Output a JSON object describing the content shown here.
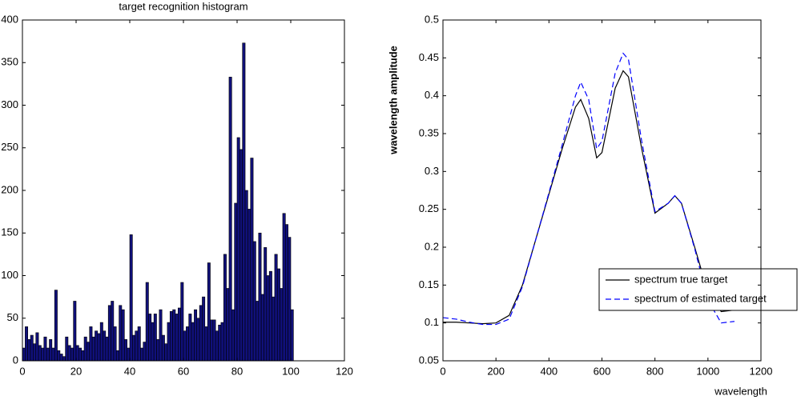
{
  "chart_data": [
    {
      "type": "histogram",
      "title": "target recognition histogram",
      "bins": [
        0,
        1,
        2,
        3,
        4,
        5,
        6,
        7,
        8,
        9,
        10,
        11,
        12,
        13,
        14,
        15,
        16,
        17,
        18,
        19,
        20,
        21,
        22,
        23,
        24,
        25,
        26,
        27,
        28,
        29,
        30,
        31,
        32,
        33,
        34,
        35,
        36,
        37,
        38,
        39,
        40,
        41,
        42,
        43,
        44,
        45,
        46,
        47,
        48,
        49,
        50,
        51,
        52,
        53,
        54,
        55,
        56,
        57,
        58,
        59,
        60,
        61,
        62,
        63,
        64,
        65,
        66,
        67,
        68,
        69,
        70,
        71,
        72,
        73,
        74,
        75,
        76,
        77,
        78,
        79,
        80,
        81,
        82,
        83,
        84,
        85,
        86,
        87,
        88,
        89,
        90,
        91,
        92,
        93,
        94,
        95,
        96,
        97,
        98,
        99,
        100,
        101
      ],
      "counts": [
        15,
        40,
        25,
        30,
        20,
        33,
        18,
        15,
        28,
        15,
        25,
        15,
        83,
        12,
        8,
        5,
        28,
        18,
        15,
        70,
        18,
        15,
        12,
        28,
        22,
        40,
        28,
        35,
        32,
        45,
        35,
        28,
        65,
        70,
        40,
        12,
        65,
        60,
        25,
        15,
        148,
        30,
        35,
        40,
        15,
        22,
        92,
        55,
        45,
        55,
        25,
        60,
        30,
        20,
        45,
        58,
        60,
        55,
        62,
        92,
        35,
        40,
        55,
        45,
        60,
        50,
        65,
        75,
        40,
        115,
        48,
        48,
        35,
        42,
        45,
        125,
        85,
        333,
        60,
        185,
        262,
        248,
        373,
        200,
        178,
        238,
        140,
        70,
        150,
        78,
        133,
        100,
        105,
        75,
        125,
        108,
        85,
        173,
        160,
        145,
        60
      ],
      "color": "#10107a",
      "xlim": [
        0,
        120
      ],
      "xticks": [
        0,
        20,
        40,
        60,
        80,
        100,
        120
      ],
      "ylim": [
        0,
        400
      ],
      "yticks": [
        0,
        50,
        100,
        150,
        200,
        250,
        300,
        350,
        400
      ]
    },
    {
      "type": "line",
      "xlabel": "wavelength",
      "ylabel": "wavelength amplitude",
      "x": [
        0,
        50,
        100,
        150,
        200,
        250,
        300,
        350,
        400,
        450,
        500,
        520,
        550,
        580,
        600,
        650,
        680,
        700,
        750,
        800,
        850,
        875,
        900,
        950,
        1000,
        1050,
        1100
      ],
      "series": [
        {
          "name": "spectrum true target",
          "color": "#000000",
          "dash": false,
          "values": [
            0.101,
            0.101,
            0.1,
            0.099,
            0.1,
            0.11,
            0.15,
            0.21,
            0.27,
            0.33,
            0.385,
            0.395,
            0.37,
            0.318,
            0.325,
            0.41,
            0.433,
            0.425,
            0.33,
            0.245,
            0.258,
            0.268,
            0.258,
            0.2,
            0.14,
            0.115,
            0.117
          ]
        },
        {
          "name": "spectrum of estimated target",
          "color": "#0000ff",
          "dash": true,
          "values": [
            0.107,
            0.105,
            0.101,
            0.098,
            0.098,
            0.105,
            0.148,
            0.21,
            0.272,
            0.335,
            0.4,
            0.418,
            0.395,
            0.33,
            0.34,
            0.43,
            0.456,
            0.448,
            0.34,
            0.247,
            0.258,
            0.268,
            0.258,
            0.198,
            0.13,
            0.1,
            0.102
          ]
        }
      ],
      "xlim": [
        0,
        1200
      ],
      "xticks": [
        0,
        200,
        400,
        600,
        800,
        1000,
        1200
      ],
      "ylim": [
        0.05,
        0.5
      ],
      "yticks": [
        0.05,
        0.1,
        0.15,
        0.2,
        0.25,
        0.3,
        0.35,
        0.4,
        0.45,
        0.5
      ],
      "legend": "east"
    }
  ]
}
